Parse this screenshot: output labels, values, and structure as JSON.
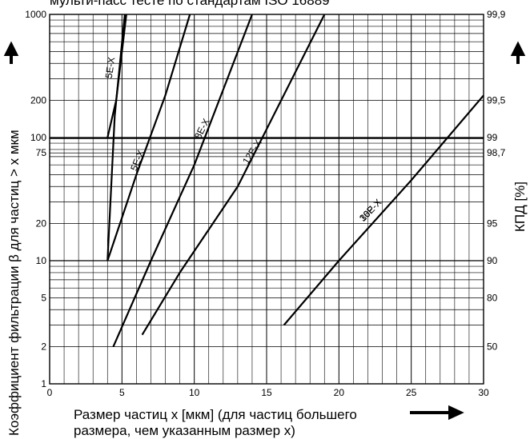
{
  "chart_data": {
    "type": "line",
    "title": "мульти-пасс тесте по стандартам ISO 16889",
    "xlabel_line1": "Размер частиц x [мкм] (для частиц большего",
    "xlabel_line2": "размера, чем указанным размер  x)",
    "ylabel": "Коэффициент фильтрации β для частиц > x мкм",
    "y2label": "КПД  [%]",
    "xlim": [
      0,
      30
    ],
    "ylim": [
      1,
      1000
    ],
    "yscale": "log",
    "grid": true,
    "x_ticks": [
      "0",
      "5",
      "10",
      "15",
      "20",
      "25",
      "30"
    ],
    "x_tick_values": [
      0,
      5,
      10,
      15,
      20,
      25,
      30
    ],
    "y_ticks": [
      "1",
      "2",
      "5",
      "10",
      "20",
      "75",
      "100",
      "200",
      "1000"
    ],
    "y_tick_values": [
      1,
      2,
      5,
      10,
      20,
      75,
      100,
      200,
      1000
    ],
    "y2_ticks": [
      "50",
      "80",
      "90",
      "95",
      "98,7",
      "99",
      "99,5",
      "99,9"
    ],
    "y2_tick_values": [
      2,
      5,
      10,
      20,
      75,
      100,
      200,
      1000
    ],
    "series": [
      {
        "name": "5E-X",
        "x": [
          4.0,
          4.5,
          5.2
        ],
        "y": [
          10,
          150,
          1000
        ]
      },
      {
        "name": "5E-X",
        "x": [
          4.0,
          4.6,
          5.3
        ],
        "y": [
          100,
          200,
          1000
        ]
      },
      {
        "name": "8E-X",
        "x": [
          4.0,
          6.0,
          8.0,
          9.7
        ],
        "y": [
          10,
          50,
          220,
          1000
        ]
      },
      {
        "name": "12E-X",
        "x": [
          4.4,
          7.0,
          10.0,
          14.0
        ],
        "y": [
          2,
          10,
          60,
          1000
        ]
      },
      {
        "name": "16E-X",
        "x": [
          6.4,
          9.0,
          13.0,
          19.0
        ],
        "y": [
          2.5,
          8,
          40,
          1000
        ]
      },
      {
        "name": "30P",
        "x": [
          16.2,
          20.0,
          25.0,
          30.0
        ],
        "y": [
          3,
          10,
          45,
          220
        ]
      }
    ]
  }
}
